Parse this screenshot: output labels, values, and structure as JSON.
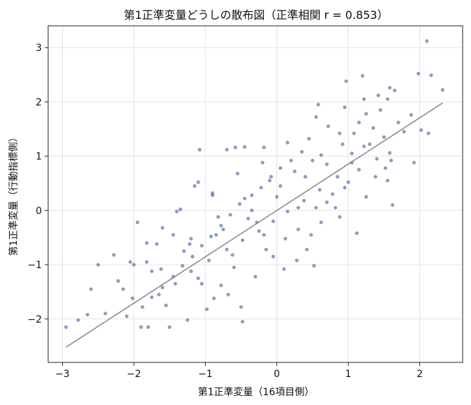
{
  "chart_data": {
    "type": "scatter",
    "title": "第1正準変量どうしの散布図（正準相関 r = 0.853）",
    "xlabel": "第1正準変量（16項目側）",
    "ylabel": "第1正準変量（行動指標側）",
    "xlim": [
      -3.2,
      2.6
    ],
    "ylim": [
      -2.8,
      3.4
    ],
    "x_ticks": [
      -3,
      -2,
      -1,
      0,
      1,
      2
    ],
    "x_tick_labels": [
      "−3",
      "−2",
      "−1",
      "0",
      "1",
      "2"
    ],
    "y_ticks": [
      -2,
      -1,
      0,
      1,
      2,
      3
    ],
    "y_tick_labels": [
      "−2",
      "−1",
      "0",
      "1",
      "2",
      "3"
    ],
    "grid": true,
    "point_color": "#2f4f8a",
    "line_color": "#8c8c8c",
    "fit_line": {
      "x": [
        -2.95,
        2.32
      ],
      "y": [
        -2.52,
        1.98
      ]
    },
    "points": [
      [
        2.1,
        3.12
      ],
      [
        1.98,
        2.52
      ],
      [
        2.16,
        2.49
      ],
      [
        2.32,
        2.22
      ],
      [
        0.97,
        2.38
      ],
      [
        1.2,
        2.48
      ],
      [
        1.58,
        2.26
      ],
      [
        1.65,
        2.21
      ],
      [
        2.02,
        1.48
      ],
      [
        2.12,
        1.42
      ],
      [
        1.88,
        1.76
      ],
      [
        1.92,
        0.88
      ],
      [
        1.58,
        1.06
      ],
      [
        1.6,
        0.92
      ],
      [
        1.62,
        0.1
      ],
      [
        1.52,
        0.78
      ],
      [
        1.38,
        0.62
      ],
      [
        1.12,
        -0.42
      ],
      [
        0.52,
        -1.02
      ],
      [
        0.1,
        -1.08
      ],
      [
        -0.28,
        -0.22
      ],
      [
        -1.08,
        1.12
      ],
      [
        -0.7,
        1.12
      ],
      [
        -0.58,
        1.16
      ],
      [
        -0.45,
        1.17
      ],
      [
        -0.18,
        1.16
      ],
      [
        -1.15,
        0.45
      ],
      [
        -0.9,
        0.28
      ],
      [
        -1.4,
        -0.02
      ],
      [
        -1.35,
        0.02
      ],
      [
        -1.1,
        0.52
      ],
      [
        -1.95,
        -0.22
      ],
      [
        -1.6,
        -0.32
      ],
      [
        -1.68,
        -0.62
      ],
      [
        -2.28,
        -0.82
      ],
      [
        -2.5,
        -1.0
      ],
      [
        -2.0,
        -1.0
      ],
      [
        -1.82,
        -0.6
      ],
      [
        -2.22,
        -1.3
      ],
      [
        -2.6,
        -1.45
      ],
      [
        -2.78,
        -2.02
      ],
      [
        -2.65,
        -1.92
      ],
      [
        -2.95,
        -2.15
      ],
      [
        -2.4,
        -1.9
      ],
      [
        -2.1,
        -1.95
      ],
      [
        -1.9,
        -2.15
      ],
      [
        -1.8,
        -2.15
      ],
      [
        -1.5,
        -2.15
      ],
      [
        -1.25,
        -2.02
      ],
      [
        -0.98,
        -1.82
      ],
      [
        -0.5,
        -1.78
      ],
      [
        -0.48,
        -2.05
      ],
      [
        -0.88,
        -1.62
      ],
      [
        -0.78,
        -1.38
      ],
      [
        -0.3,
        -1.22
      ],
      [
        0.28,
        -0.92
      ],
      [
        0.48,
        -0.45
      ],
      [
        0.62,
        -0.22
      ],
      [
        0.82,
        0.05
      ],
      [
        0.95,
        0.42
      ],
      [
        1.05,
        0.88
      ],
      [
        1.22,
        1.18
      ],
      [
        1.35,
        1.52
      ],
      [
        1.45,
        1.85
      ],
      [
        1.55,
        2.05
      ],
      [
        1.42,
        2.12
      ],
      [
        1.25,
        1.78
      ],
      [
        1.15,
        1.62
      ],
      [
        0.88,
        1.42
      ],
      [
        0.72,
        1.55
      ],
      [
        0.55,
        1.72
      ],
      [
        0.45,
        1.32
      ],
      [
        0.35,
        1.08
      ],
      [
        0.2,
        0.92
      ],
      [
        0.05,
        0.78
      ],
      [
        -0.08,
        0.62
      ],
      [
        -0.22,
        0.42
      ],
      [
        -0.35,
        0.28
      ],
      [
        -0.52,
        0.12
      ],
      [
        -0.65,
        -0.08
      ],
      [
        -0.78,
        -0.28
      ],
      [
        -0.92,
        -0.48
      ],
      [
        -1.05,
        -0.65
      ],
      [
        -1.18,
        -0.85
      ],
      [
        -1.32,
        -1.02
      ],
      [
        -1.45,
        -1.22
      ],
      [
        -1.6,
        -1.42
      ],
      [
        -1.75,
        -1.6
      ],
      [
        -1.88,
        -1.78
      ],
      [
        -2.02,
        -1.62
      ],
      [
        -1.62,
        -1.08
      ],
      [
        -1.2,
        -0.52
      ],
      [
        -0.82,
        -0.12
      ],
      [
        -0.45,
        0.22
      ],
      [
        -0.1,
        0.55
      ],
      [
        0.25,
        0.72
      ],
      [
        0.62,
        1.02
      ],
      [
        0.92,
        1.22
      ],
      [
        1.08,
        1.42
      ],
      [
        1.3,
        1.22
      ],
      [
        1.5,
        1.35
      ],
      [
        1.7,
        1.62
      ],
      [
        1.78,
        1.45
      ],
      [
        1.4,
        0.95
      ],
      [
        1.15,
        0.75
      ],
      [
        0.85,
        0.62
      ],
      [
        0.6,
        0.38
      ],
      [
        0.38,
        0.18
      ],
      [
        0.15,
        -0.02
      ],
      [
        -0.05,
        -0.2
      ],
      [
        -0.25,
        -0.38
      ],
      [
        -0.48,
        -0.55
      ],
      [
        -0.7,
        -0.72
      ],
      [
        -0.95,
        -0.92
      ],
      [
        -1.2,
        -1.12
      ],
      [
        -1.42,
        -1.35
      ],
      [
        -1.65,
        -1.55
      ],
      [
        -1.05,
        -1.35
      ],
      [
        -0.6,
        -1.05
      ],
      [
        -0.15,
        -0.72
      ],
      [
        0.3,
        -0.35
      ],
      [
        0.7,
        0.15
      ],
      [
        1.0,
        0.52
      ],
      [
        0.4,
        0.62
      ],
      [
        0.0,
        0.25
      ],
      [
        -0.4,
        -0.15
      ],
      [
        -0.85,
        -0.45
      ],
      [
        -1.3,
        -0.75
      ],
      [
        -1.75,
        -1.12
      ],
      [
        -2.15,
        -1.45
      ],
      [
        -0.2,
        0.88
      ],
      [
        0.15,
        1.25
      ],
      [
        0.5,
        0.92
      ],
      [
        0.78,
        0.3
      ],
      [
        0.3,
        0.05
      ],
      [
        -0.18,
        -0.45
      ],
      [
        -0.62,
        -0.82
      ],
      [
        -1.1,
        -1.25
      ],
      [
        -1.55,
        -1.75
      ],
      [
        0.58,
        1.95
      ],
      [
        0.95,
        1.9
      ],
      [
        1.22,
        2.05
      ],
      [
        -0.55,
        0.68
      ],
      [
        -0.9,
        0.32
      ],
      [
        -1.45,
        -0.45
      ],
      [
        -2.05,
        -0.95
      ],
      [
        0.12,
        -0.52
      ],
      [
        0.42,
        -0.72
      ],
      [
        0.88,
        -0.12
      ],
      [
        1.25,
        0.25
      ],
      [
        1.55,
        0.55
      ],
      [
        0.7,
        0.85
      ],
      [
        0.05,
        0.45
      ],
      [
        -0.35,
        0.0
      ],
      [
        -0.75,
        -0.35
      ],
      [
        -1.22,
        -0.62
      ],
      [
        -1.82,
        -0.95
      ],
      [
        -0.05,
        -0.85
      ],
      [
        0.55,
        0.05
      ],
      [
        1.05,
        1.05
      ],
      [
        -0.68,
        -1.55
      ]
    ]
  }
}
